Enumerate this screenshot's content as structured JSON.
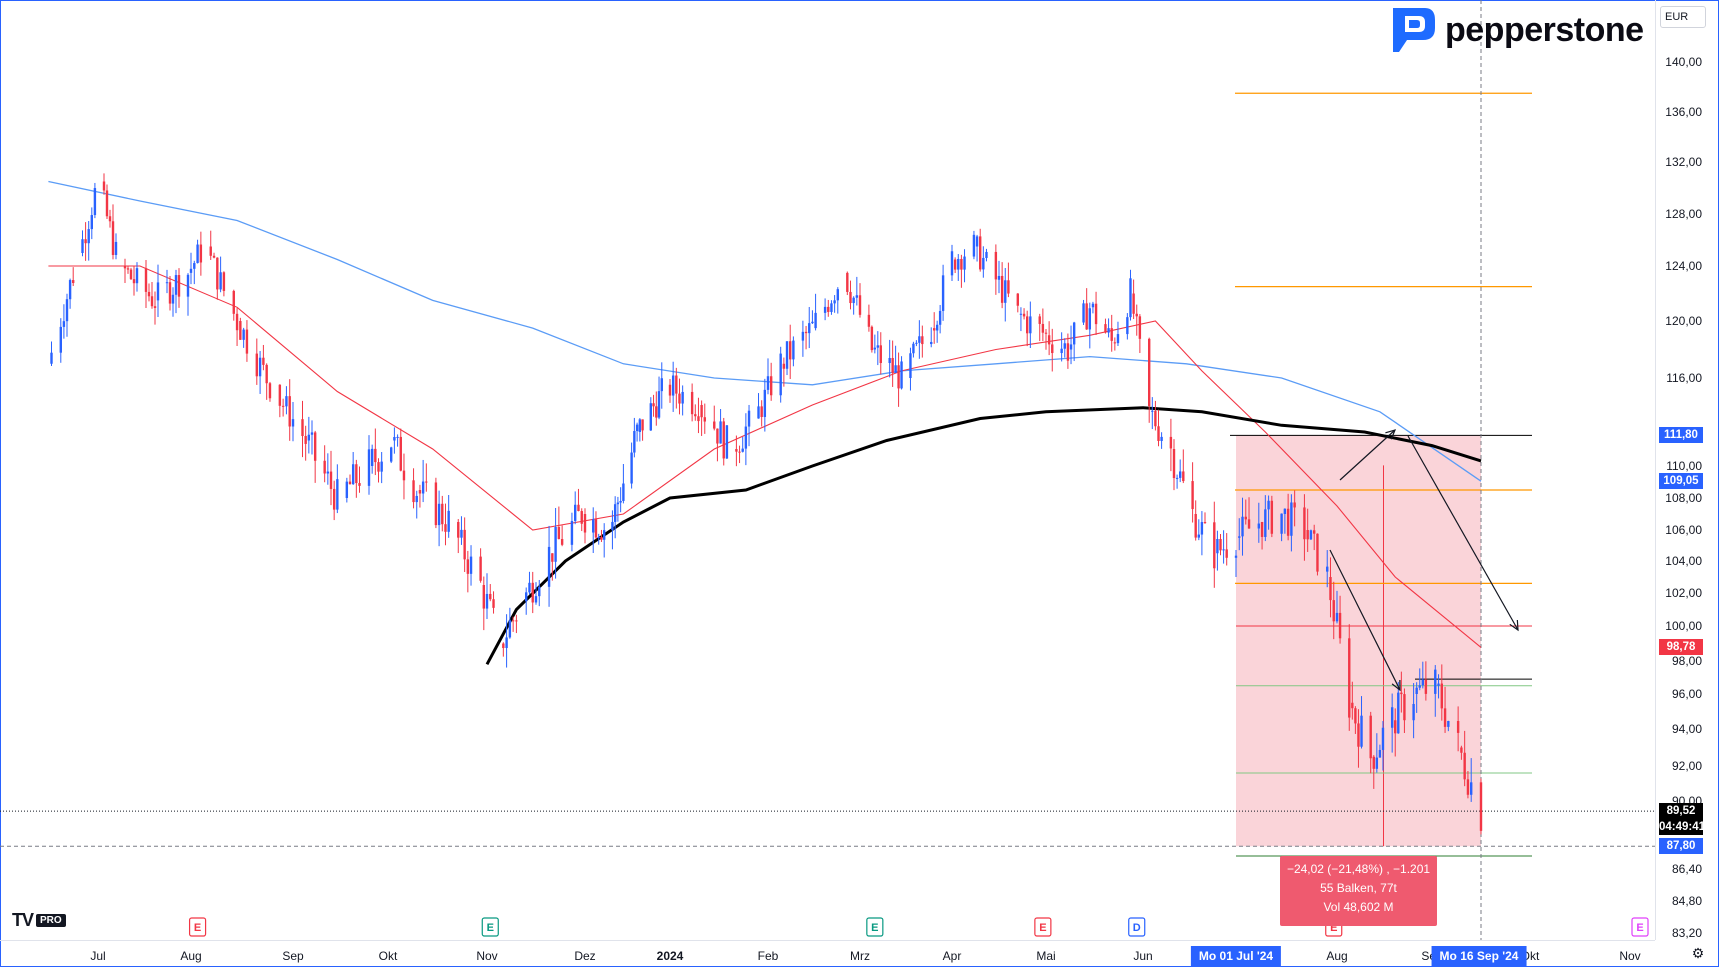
{
  "brand": {
    "name": "pepperstone",
    "accent": "#1e6bff"
  },
  "currency": "EUR",
  "platform": {
    "logo": "TV",
    "tier": "PRO"
  },
  "colors": {
    "up": "#2962ff",
    "down": "#f23645",
    "sma_black": "#000000",
    "ma_blue": "#5b9cf6",
    "ma_red": "#f23645",
    "ribbon_green": "#a5d6a7",
    "ribbon_red": "#c49a9a",
    "measure_fill": "#f8c6cc",
    "level_orange": "#ff9800",
    "level_green": "#81c784"
  },
  "chart_data": {
    "type": "candlestick",
    "yaxis": {
      "ticks": [
        "140,00",
        "136,00",
        "132,00",
        "128,00",
        "124,00",
        "120,00",
        "116,00",
        "110,00",
        "108,00",
        "106,00",
        "104,00",
        "102,00",
        "100,00",
        "98,00",
        "96,00",
        "94,00",
        "92,00",
        "90,00",
        "86,40",
        "84,80",
        "83,20"
      ],
      "tick_values": [
        140,
        136,
        132,
        128,
        124,
        120,
        116,
        110,
        108,
        106,
        104,
        102,
        100,
        98,
        96,
        94,
        92,
        90,
        86.4,
        84.8,
        83.2
      ]
    },
    "xaxis": {
      "ticks": [
        "Jul",
        "Aug",
        "Sep",
        "Okt",
        "Nov",
        "Dez",
        "2024",
        "Feb",
        "Mrz",
        "Apr",
        "Mai",
        "Jun",
        "Aug",
        "Sep",
        "Okt",
        "Nov"
      ],
      "highlight_start": "Mo 01 Jul '24",
      "highlight_end": "Mo 16 Sep '24"
    },
    "price_labels": [
      {
        "value": "111,80",
        "color": "#2962ff"
      },
      {
        "value": "109,05",
        "color": "#2962ff"
      },
      {
        "value": "98,78",
        "color": "#f23645"
      },
      {
        "value": "89,52",
        "color": "#000000"
      },
      {
        "value": "04:49:41",
        "color": "#000000"
      },
      {
        "value": "87,80",
        "color": "#2962ff"
      }
    ],
    "close_path": [
      [
        "2023-06-15",
        117.0
      ],
      [
        "2023-06-25",
        125.0
      ],
      [
        "2023-07-01",
        130.5
      ],
      [
        "2023-07-08",
        124.0
      ],
      [
        "2023-07-20",
        121.5
      ],
      [
        "2023-07-31",
        123.5
      ],
      [
        "2023-08-05",
        125.5
      ],
      [
        "2023-08-15",
        120.0
      ],
      [
        "2023-08-25",
        115.5
      ],
      [
        "2023-09-05",
        111.5
      ],
      [
        "2023-09-15",
        108.0
      ],
      [
        "2023-09-25",
        110.0
      ],
      [
        "2023-10-02",
        111.5
      ],
      [
        "2023-10-10",
        108.5
      ],
      [
        "2023-10-20",
        106.5
      ],
      [
        "2023-10-30",
        102.5
      ],
      [
        "2023-11-05",
        99.0
      ],
      [
        "2023-11-12",
        101.5
      ],
      [
        "2023-11-20",
        104.5
      ],
      [
        "2023-11-30",
        107.0
      ],
      [
        "2023-12-10",
        106.0
      ],
      [
        "2023-12-20",
        112.0
      ],
      [
        "2023-12-31",
        115.5
      ],
      [
        "2024-01-10",
        114.0
      ],
      [
        "2024-01-20",
        111.0
      ],
      [
        "2024-01-28",
        113.0
      ],
      [
        "2024-02-05",
        117.0
      ],
      [
        "2024-02-15",
        119.5
      ],
      [
        "2024-02-25",
        123.5
      ],
      [
        "2024-03-05",
        118.0
      ],
      [
        "2024-03-15",
        116.0
      ],
      [
        "2024-03-25",
        119.5
      ],
      [
        "2024-04-01",
        124.5
      ],
      [
        "2024-04-08",
        125.5
      ],
      [
        "2024-04-15",
        123.0
      ],
      [
        "2024-04-22",
        120.5
      ],
      [
        "2024-05-01",
        119.0
      ],
      [
        "2024-05-08",
        118.0
      ],
      [
        "2024-05-15",
        121.0
      ],
      [
        "2024-05-22",
        118.5
      ],
      [
        "2024-05-28",
        122.0
      ],
      [
        "2024-06-03",
        113.5
      ],
      [
        "2024-06-10",
        111.0
      ],
      [
        "2024-06-17",
        107.0
      ],
      [
        "2024-06-24",
        104.5
      ],
      [
        "2024-07-01",
        105.5
      ],
      [
        "2024-07-08",
        106.5
      ],
      [
        "2024-07-15",
        107.0
      ],
      [
        "2024-07-22",
        106.0
      ],
      [
        "2024-07-29",
        103.0
      ],
      [
        "2024-08-05",
        95.5
      ],
      [
        "2024-08-12",
        92.5
      ],
      [
        "2024-08-19",
        94.5
      ],
      [
        "2024-08-26",
        96.0
      ],
      [
        "2024-09-02",
        96.5
      ],
      [
        "2024-09-09",
        93.0
      ],
      [
        "2024-09-16",
        89.52
      ]
    ],
    "sma_black": [
      [
        "2023-11-01",
        97.8
      ],
      [
        "2023-11-10",
        101.0
      ],
      [
        "2023-11-25",
        104.0
      ],
      [
        "2023-12-15",
        106.5
      ],
      [
        "2024-01-01",
        108.0
      ],
      [
        "2024-01-25",
        108.5
      ],
      [
        "2024-02-15",
        110.0
      ],
      [
        "2024-03-10",
        111.5
      ],
      [
        "2024-04-10",
        113.0
      ],
      [
        "2024-05-01",
        113.5
      ],
      [
        "2024-06-01",
        113.8
      ],
      [
        "2024-06-20",
        113.5
      ],
      [
        "2024-07-15",
        112.5
      ],
      [
        "2024-08-10",
        112.0
      ],
      [
        "2024-09-01",
        111.2
      ],
      [
        "2024-09-16",
        110.3
      ]
    ],
    "ma_blue": [
      [
        "2023-06-15",
        130.5
      ],
      [
        "2023-07-15",
        129.0
      ],
      [
        "2023-08-15",
        127.5
      ],
      [
        "2023-09-15",
        124.5
      ],
      [
        "2023-10-15",
        121.5
      ],
      [
        "2023-11-15",
        119.5
      ],
      [
        "2023-12-15",
        117.0
      ],
      [
        "2024-01-15",
        116.0
      ],
      [
        "2024-02-15",
        115.5
      ],
      [
        "2024-03-15",
        116.5
      ],
      [
        "2024-04-15",
        117.0
      ],
      [
        "2024-05-15",
        117.5
      ],
      [
        "2024-06-15",
        117.0
      ],
      [
        "2024-07-15",
        116.0
      ],
      [
        "2024-08-15",
        113.5
      ],
      [
        "2024-09-16",
        109.05
      ]
    ],
    "ma_red": [
      [
        "2023-06-15",
        124.0
      ],
      [
        "2023-07-15",
        124.0
      ],
      [
        "2023-08-15",
        121.0
      ],
      [
        "2023-09-15",
        115.0
      ],
      [
        "2023-10-15",
        111.0
      ],
      [
        "2023-11-15",
        106.0
      ],
      [
        "2023-12-15",
        107.0
      ],
      [
        "2024-01-15",
        111.0
      ],
      [
        "2024-02-15",
        114.0
      ],
      [
        "2024-03-15",
        116.5
      ],
      [
        "2024-04-15",
        118.0
      ],
      [
        "2024-05-15",
        119.0
      ],
      [
        "2024-06-05",
        120.0
      ],
      [
        "2024-06-20",
        116.5
      ],
      [
        "2024-07-10",
        112.0
      ],
      [
        "2024-08-01",
        107.5
      ],
      [
        "2024-08-20",
        103.0
      ],
      [
        "2024-09-16",
        98.78
      ]
    ],
    "measure": {
      "from": "2024-07-01",
      "to": "2024-09-16",
      "top": 111.8,
      "bottom": 87.8,
      "lines": [
        "−24,02 (−21,48%) , −1.201",
        "55 Balken, 77t",
        "Vol 48,602 M"
      ]
    },
    "levels": [
      {
        "value": 137.5,
        "color": "#ff9800"
      },
      {
        "value": 122.5,
        "color": "#ff9800"
      },
      {
        "value": 108.5,
        "color": "#ff9800"
      },
      {
        "value": 102.6,
        "color": "#ff9800"
      },
      {
        "value": 111.8,
        "color": "#000000"
      },
      {
        "value": 96.9,
        "color": "#000000"
      },
      {
        "value": 100.0,
        "color": "#f23645"
      },
      {
        "value": 96.5,
        "color": "#81c784"
      },
      {
        "value": 91.6,
        "color": "#81c784"
      },
      {
        "value": 87.2,
        "color": "#2e7d32"
      }
    ],
    "events": [
      {
        "label": "E",
        "date": "2023-08-03",
        "color": "#f23645"
      },
      {
        "label": "E",
        "date": "2023-11-02",
        "color": "#089981"
      },
      {
        "label": "E",
        "date": "2024-03-06",
        "color": "#089981"
      },
      {
        "label": "E",
        "date": "2024-04-30",
        "color": "#f23645"
      },
      {
        "label": "D",
        "date": "2024-05-30",
        "color": "#2962ff"
      },
      {
        "label": "E",
        "date": "2024-07-31",
        "color": "#f23645"
      },
      {
        "label": "E",
        "date": "2024-11-06",
        "color": "#e040fb"
      }
    ]
  }
}
